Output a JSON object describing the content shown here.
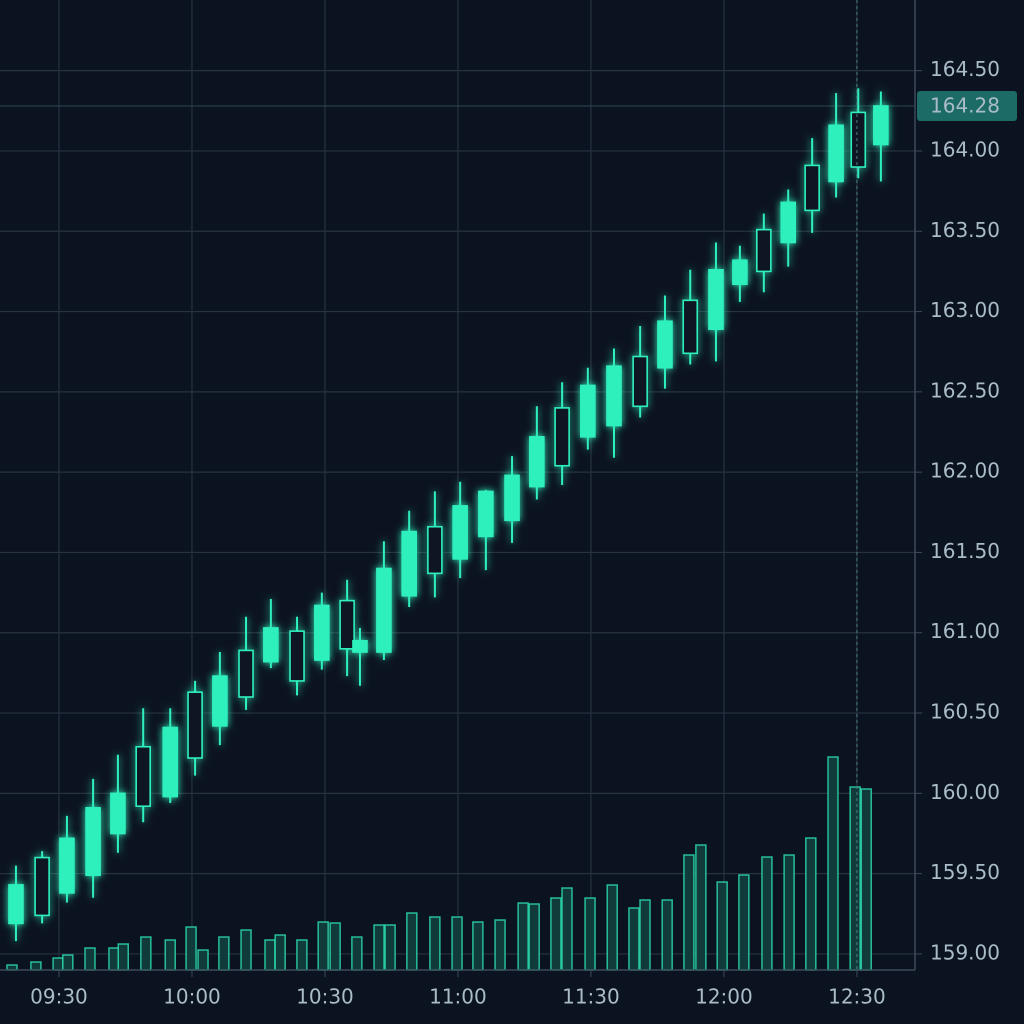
{
  "chart_data": {
    "type": "candlestick",
    "xlim": [
      556.7,
      763.1
    ],
    "xticks": [
      {
        "value": 570,
        "label": "09:30"
      },
      {
        "value": 600,
        "label": "10:00"
      },
      {
        "value": 630,
        "label": "10:30"
      },
      {
        "value": 660,
        "label": "11:00"
      },
      {
        "value": 690,
        "label": "11:30"
      },
      {
        "value": 720,
        "label": "12:00"
      },
      {
        "value": 750,
        "label": "12:30"
      }
    ],
    "ylim": [
      158.9,
      164.94
    ],
    "yticks": [
      {
        "value": 159,
        "label": "159.00"
      },
      {
        "value": 159.5,
        "label": "159.50"
      },
      {
        "value": 160,
        "label": "160.00"
      },
      {
        "value": 160.5,
        "label": "160.50"
      },
      {
        "value": 161,
        "label": "161.00"
      },
      {
        "value": 161.5,
        "label": "161.50"
      },
      {
        "value": 162,
        "label": "162.00"
      },
      {
        "value": 162.5,
        "label": "162.50"
      },
      {
        "value": 163,
        "label": "163.00"
      },
      {
        "value": 163.5,
        "label": "163.50"
      },
      {
        "value": 164,
        "label": "164.00"
      },
      {
        "value": 164.5,
        "label": "164.50"
      }
    ],
    "grid": true,
    "color": "#2ff0bd",
    "last_price": 164.28,
    "crosshair_x": 750,
    "candles": [
      {
        "x": 560.3,
        "open": 159.19,
        "high": 159.55,
        "low": 159.08,
        "close": 159.43
      },
      {
        "x": 566.2,
        "open": 159.6,
        "high": 159.64,
        "low": 159.19,
        "close": 159.24
      },
      {
        "x": 571.8,
        "open": 159.38,
        "high": 159.86,
        "low": 159.32,
        "close": 159.72
      },
      {
        "x": 577.7,
        "open": 159.49,
        "high": 160.09,
        "low": 159.35,
        "close": 159.91
      },
      {
        "x": 583.3,
        "open": 159.75,
        "high": 160.24,
        "low": 159.63,
        "close": 160
      },
      {
        "x": 589.0,
        "open": 160.29,
        "high": 160.53,
        "low": 159.82,
        "close": 159.92
      },
      {
        "x": 595.1,
        "open": 159.98,
        "high": 160.53,
        "low": 159.94,
        "close": 160.41
      },
      {
        "x": 600.7,
        "open": 160.63,
        "high": 160.7,
        "low": 160.11,
        "close": 160.22
      },
      {
        "x": 606.3,
        "open": 160.42,
        "high": 160.88,
        "low": 160.3,
        "close": 160.73
      },
      {
        "x": 612.2,
        "open": 160.89,
        "high": 161.1,
        "low": 160.52,
        "close": 160.6
      },
      {
        "x": 617.8,
        "open": 160.82,
        "high": 161.21,
        "low": 160.78,
        "close": 161.03
      },
      {
        "x": 623.7,
        "open": 161.01,
        "high": 161.1,
        "low": 160.61,
        "close": 160.7
      },
      {
        "x": 629.3,
        "open": 160.83,
        "high": 161.25,
        "low": 160.77,
        "close": 161.17
      },
      {
        "x": 635.0,
        "open": 161.2,
        "high": 161.33,
        "low": 160.73,
        "close": 160.9
      },
      {
        "x": 637.9,
        "open": 160.88,
        "high": 161.03,
        "low": 160.67,
        "close": 160.95
      },
      {
        "x": 643.3,
        "open": 160.88,
        "high": 161.57,
        "low": 160.83,
        "close": 161.4
      },
      {
        "x": 649.0,
        "open": 161.23,
        "high": 161.76,
        "low": 161.16,
        "close": 161.63
      },
      {
        "x": 654.8,
        "open": 161.66,
        "high": 161.88,
        "low": 161.22,
        "close": 161.37
      },
      {
        "x": 660.5,
        "open": 161.46,
        "high": 161.94,
        "low": 161.34,
        "close": 161.79
      },
      {
        "x": 666.3,
        "open": 161.6,
        "high": 161.89,
        "low": 161.39,
        "close": 161.88
      },
      {
        "x": 672.2,
        "open": 161.7,
        "high": 162.1,
        "low": 161.56,
        "close": 161.98
      },
      {
        "x": 677.8,
        "open": 161.91,
        "high": 162.41,
        "low": 161.83,
        "close": 162.22
      },
      {
        "x": 683.5,
        "open": 162.4,
        "high": 162.56,
        "low": 161.92,
        "close": 162.04
      },
      {
        "x": 689.3,
        "open": 162.22,
        "high": 162.65,
        "low": 162.14,
        "close": 162.54
      },
      {
        "x": 695.2,
        "open": 162.29,
        "high": 162.77,
        "low": 162.09,
        "close": 162.66
      },
      {
        "x": 701.1,
        "open": 162.72,
        "high": 162.91,
        "low": 162.34,
        "close": 162.41
      },
      {
        "x": 706.7,
        "open": 162.65,
        "high": 163.1,
        "low": 162.52,
        "close": 162.94
      },
      {
        "x": 712.4,
        "open": 163.07,
        "high": 163.26,
        "low": 162.67,
        "close": 162.74
      },
      {
        "x": 718.2,
        "open": 162.89,
        "high": 163.43,
        "low": 162.69,
        "close": 163.26
      },
      {
        "x": 723.6,
        "open": 163.17,
        "high": 163.41,
        "low": 163.06,
        "close": 163.32
      },
      {
        "x": 729.0,
        "open": 163.51,
        "high": 163.61,
        "low": 163.12,
        "close": 163.25
      },
      {
        "x": 734.5,
        "open": 163.43,
        "high": 163.76,
        "low": 163.28,
        "close": 163.68
      },
      {
        "x": 739.9,
        "open": 163.91,
        "high": 164.08,
        "low": 163.49,
        "close": 163.63
      },
      {
        "x": 745.3,
        "open": 163.81,
        "high": 164.36,
        "low": 163.71,
        "close": 164.16
      },
      {
        "x": 750.3,
        "open": 164.24,
        "high": 164.39,
        "low": 163.83,
        "close": 163.9
      },
      {
        "x": 755.4,
        "open": 164.04,
        "high": 164.37,
        "low": 163.81,
        "close": 164.28
      }
    ],
    "volume": {
      "x": [
        559.4,
        564.8,
        569.8,
        572.0,
        577.0,
        582.4,
        584.5,
        589.6,
        595.1,
        599.8,
        602.5,
        607.2,
        612.2,
        617.6,
        619.9,
        624.8,
        629.6,
        632.3,
        637.2,
        642.2,
        644.7,
        649.6,
        654.8,
        659.8,
        664.5,
        669.5,
        674.7,
        677.2,
        682.1,
        684.6,
        689.8,
        694.8,
        699.7,
        702.2,
        707.2,
        712.1,
        714.8,
        719.6,
        724.5,
        729.7,
        734.7,
        739.6,
        744.6,
        749.6,
        752.1
      ],
      "values": [
        5,
        8,
        12,
        15,
        22,
        22,
        26,
        33,
        30,
        43,
        20,
        33,
        40,
        30,
        35,
        30,
        48,
        47,
        33,
        45,
        45,
        57,
        53,
        53,
        48,
        50,
        67,
        66,
        72,
        82,
        72,
        85,
        62,
        70,
        70,
        115,
        125,
        88,
        95,
        113,
        115,
        132,
        213,
        183,
        181
      ]
    }
  }
}
